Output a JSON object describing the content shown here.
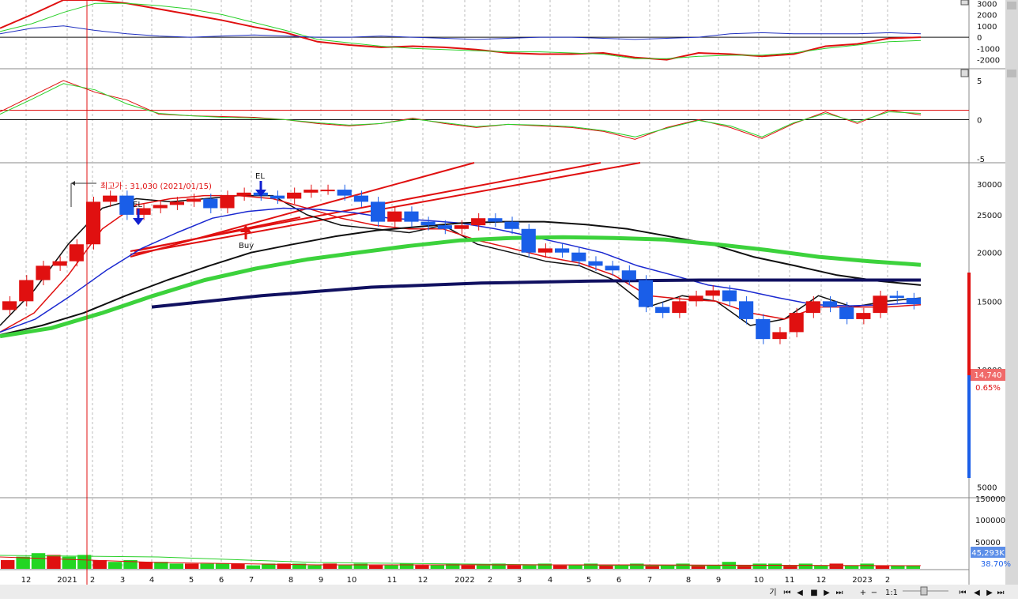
{
  "chart_data": {
    "type": "candlestick",
    "x_axis": {
      "tick_labels": [
        "12",
        "2021",
        "2",
        "3",
        "4",
        "5",
        "6",
        "7",
        "8",
        "9",
        "10",
        "11",
        "12",
        "2022",
        "2",
        "3",
        "4",
        "5",
        "6",
        "7",
        "8",
        "9",
        "10",
        "11",
        "12",
        "2023",
        "2"
      ]
    },
    "top_panel": {
      "ylim": [
        -2800,
        3300
      ],
      "tick_labels": [
        "3000",
        "2000",
        "1000",
        "0",
        "-1000",
        "-2000"
      ],
      "series": [
        {
          "color": "#e01010",
          "values": [
            800,
            2000,
            3300,
            3300,
            3000,
            2500,
            2000,
            1500,
            900,
            400,
            -400,
            -700,
            -900,
            -800,
            -900,
            -1100,
            -1400,
            -1500,
            -1500,
            -1400,
            -1800,
            -2000,
            -1400,
            -1500,
            -1700,
            -1500,
            -800,
            -600,
            -100,
            0
          ]
        },
        {
          "color": "#2ad02a",
          "values": [
            500,
            1200,
            2200,
            3000,
            3000,
            2800,
            2500,
            2000,
            1300,
            600,
            -200,
            -500,
            -800,
            -1000,
            -1100,
            -1200,
            -1300,
            -1300,
            -1400,
            -1500,
            -1900,
            -1900,
            -1700,
            -1600,
            -1600,
            -1400,
            -1000,
            -700,
            -400,
            -300
          ]
        },
        {
          "color": "#2030c0",
          "values": [
            300,
            800,
            1000,
            600,
            300,
            100,
            0,
            100,
            200,
            100,
            0,
            0,
            100,
            0,
            -100,
            -200,
            -100,
            0,
            0,
            -100,
            -200,
            -100,
            0,
            300,
            400,
            300,
            300,
            300,
            400,
            300
          ]
        }
      ]
    },
    "middle_panel": {
      "ylim": [
        -5.5,
        6.5
      ],
      "tick_labels": [
        "5",
        "0",
        "-5"
      ],
      "reference_level": 1.2,
      "series": [
        {
          "color": "#e01010",
          "values": [
            1,
            3,
            5,
            3.5,
            2.5,
            0.7,
            0.5,
            0.4,
            0.3,
            0,
            -0.5,
            -0.8,
            -0.5,
            0.2,
            -0.5,
            -1,
            -0.6,
            -0.8,
            -1,
            -1.5,
            -2.5,
            -1,
            0,
            -1,
            -2.4,
            -0.5,
            1,
            -0.5,
            1.2,
            0.6
          ]
        },
        {
          "color": "#2ad02a",
          "values": [
            0.7,
            2.6,
            4.6,
            3.8,
            2,
            0.8,
            0.5,
            0.3,
            0.2,
            0,
            -0.4,
            -0.7,
            -0.5,
            0.1,
            -0.4,
            -0.9,
            -0.6,
            -0.7,
            -0.9,
            -1.4,
            -2.2,
            -1.1,
            -0.1,
            -0.8,
            -2.2,
            -0.4,
            0.8,
            -0.3,
            1,
            0.8
          ]
        }
      ]
    },
    "price_panel": {
      "ylim": [
        4700,
        34000
      ],
      "log_scale": true,
      "tick_labels": [
        "30000",
        "25000",
        "20000",
        "15000",
        "10000",
        "5000"
      ],
      "last_price": "14,740",
      "change_pct": "0.65%",
      "annotations": {
        "high_label": "최고가 : 31,030 (2021/01/15)",
        "signals": [
          {
            "text": "EL",
            "date": "2021-03",
            "price": 27000
          },
          {
            "text": "EL",
            "date": "2021-07",
            "price": 29500
          },
          {
            "text": "Buy",
            "date": "2021-07",
            "price": 27800
          }
        ]
      },
      "candles_close": [
        15000,
        17000,
        18500,
        19000,
        21000,
        27000,
        28000,
        25000,
        26000,
        26500,
        27000,
        27500,
        26000,
        28000,
        28500,
        28000,
        27500,
        28500,
        29000,
        29000,
        28000,
        27000,
        24000,
        25500,
        24000,
        23500,
        23000,
        23500,
        24500,
        24000,
        23000,
        20000,
        20500,
        20000,
        19000,
        18500,
        18000,
        17000,
        14500,
        14000,
        15000,
        15500,
        16000,
        15000,
        13500,
        12000,
        12500,
        14000,
        15000,
        14500,
        13500,
        14000,
        15500,
        15300,
        14740
      ],
      "moving_averages": [
        {
          "color": "#101010",
          "values": [
            13000,
            16000,
            21000,
            26000,
            27500,
            27000,
            27500,
            28000,
            28000,
            25000,
            23500,
            23000,
            22500,
            23500,
            21000,
            20000,
            19000,
            18500,
            17000,
            14500,
            15500,
            15000,
            13000,
            13500,
            15500,
            14500,
            15000,
            15300
          ]
        },
        {
          "color": "#e01010",
          "values": [
            12500,
            14000,
            17500,
            23000,
            26500,
            27500,
            28000,
            28000,
            27500,
            26000,
            24500,
            23500,
            23000,
            23000,
            21500,
            20500,
            19500,
            18800,
            17500,
            15500,
            15200,
            15000,
            14000,
            13500,
            14500,
            14500,
            14500,
            14700
          ]
        },
        {
          "color": "#1a28d0",
          "values": [
            12500,
            13500,
            15500,
            18000,
            20500,
            22500,
            24500,
            25500,
            26000,
            25800,
            25300,
            24500,
            24200,
            23800,
            23000,
            22000,
            21000,
            20000,
            18500,
            17500,
            16500,
            16000,
            15300,
            14700,
            14600,
            14700,
            14900
          ]
        },
        {
          "color": "#101010",
          "values": [
            12300,
            13000,
            14000,
            15500,
            17000,
            18500,
            20000,
            21000,
            22000,
            22800,
            23300,
            23800,
            24000,
            24000,
            23600,
            23000,
            22000,
            21000,
            19500,
            18500,
            17500,
            16900,
            16500
          ]
        },
        {
          "color": "#3cd23c",
          "values": [
            12200,
            12800,
            14000,
            15500,
            17000,
            18200,
            19200,
            20000,
            20800,
            21500,
            21800,
            21900,
            21800,
            21600,
            21000,
            20300,
            19500,
            19000,
            18600
          ]
        },
        {
          "color": "#101060",
          "values": [
            14500,
            15500,
            16300,
            16700,
            16900,
            17000,
            17000,
            17000
          ]
        }
      ]
    },
    "volume_panel": {
      "tick_labels": [
        "150000",
        "100000",
        "50000"
      ],
      "last_volume": "45,293K",
      "volume_pct": "38.70%",
      "values": [
        5,
        7,
        9,
        8,
        7,
        8,
        5,
        4,
        5,
        4,
        4,
        3,
        3,
        3,
        3,
        3,
        2,
        3,
        3,
        3,
        2,
        3,
        2,
        3,
        2,
        2,
        3,
        2,
        2,
        3,
        2,
        2,
        3,
        2,
        2,
        3,
        2,
        2,
        3,
        2,
        2,
        3,
        2,
        2,
        3,
        2,
        2,
        4,
        2,
        3,
        3,
        2,
        3,
        2,
        3,
        2,
        3,
        2,
        2,
        2
      ]
    },
    "colors": {
      "up": "#e01010",
      "down": "#1a5ee8",
      "volume_up": "#e01010",
      "volume_down": "#22d622"
    }
  },
  "toolbar": {
    "items": [
      "기",
      "⏮",
      "◀",
      "■",
      "▶",
      "⏭",
      "+",
      "−",
      "1:1",
      "⏮",
      "◀",
      "▶",
      "⏭"
    ]
  }
}
